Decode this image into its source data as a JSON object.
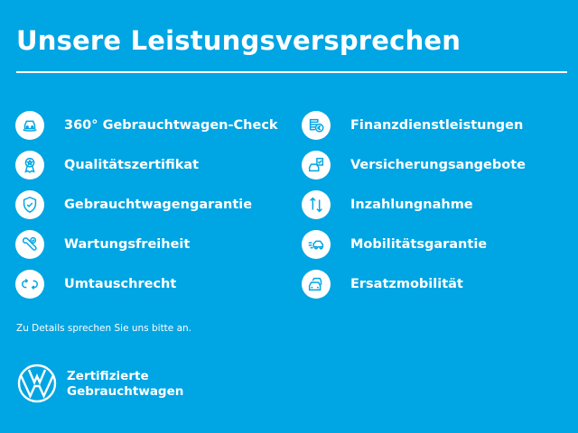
{
  "header": {
    "title": "Unsere Leistungsversprechen"
  },
  "colors": {
    "background": "#00a5e3",
    "foreground": "#ffffff"
  },
  "left_items": [
    {
      "label": "360° Gebrauchtwagen-Check",
      "icon": "car-360-icon"
    },
    {
      "label": "Qualitätszertifikat",
      "icon": "certificate-badge-icon"
    },
    {
      "label": "Gebrauchtwagengarantie",
      "icon": "shield-check-icon"
    },
    {
      "label": "Wartungsfreiheit",
      "icon": "wrench-check-icon"
    },
    {
      "label": "Umtauschrecht",
      "icon": "exchange-arrows-icon"
    }
  ],
  "right_items": [
    {
      "label": "Finanzdienstleistungen",
      "icon": "coins-euro-icon"
    },
    {
      "label": "Versicherungsangebote",
      "icon": "car-insurance-icon"
    },
    {
      "label": "Inzahlungnahme",
      "icon": "up-down-arrows-icon"
    },
    {
      "label": "Mobilitätsgarantie",
      "icon": "towing-car-icon"
    },
    {
      "label": "Ersatzmobilität",
      "icon": "replacement-cars-icon"
    }
  ],
  "note": "Zu Details sprechen Sie uns bitte an.",
  "brand": {
    "logo": "VW",
    "line1": "Zertifizierte",
    "line2": "Gebrauchtwagen"
  }
}
